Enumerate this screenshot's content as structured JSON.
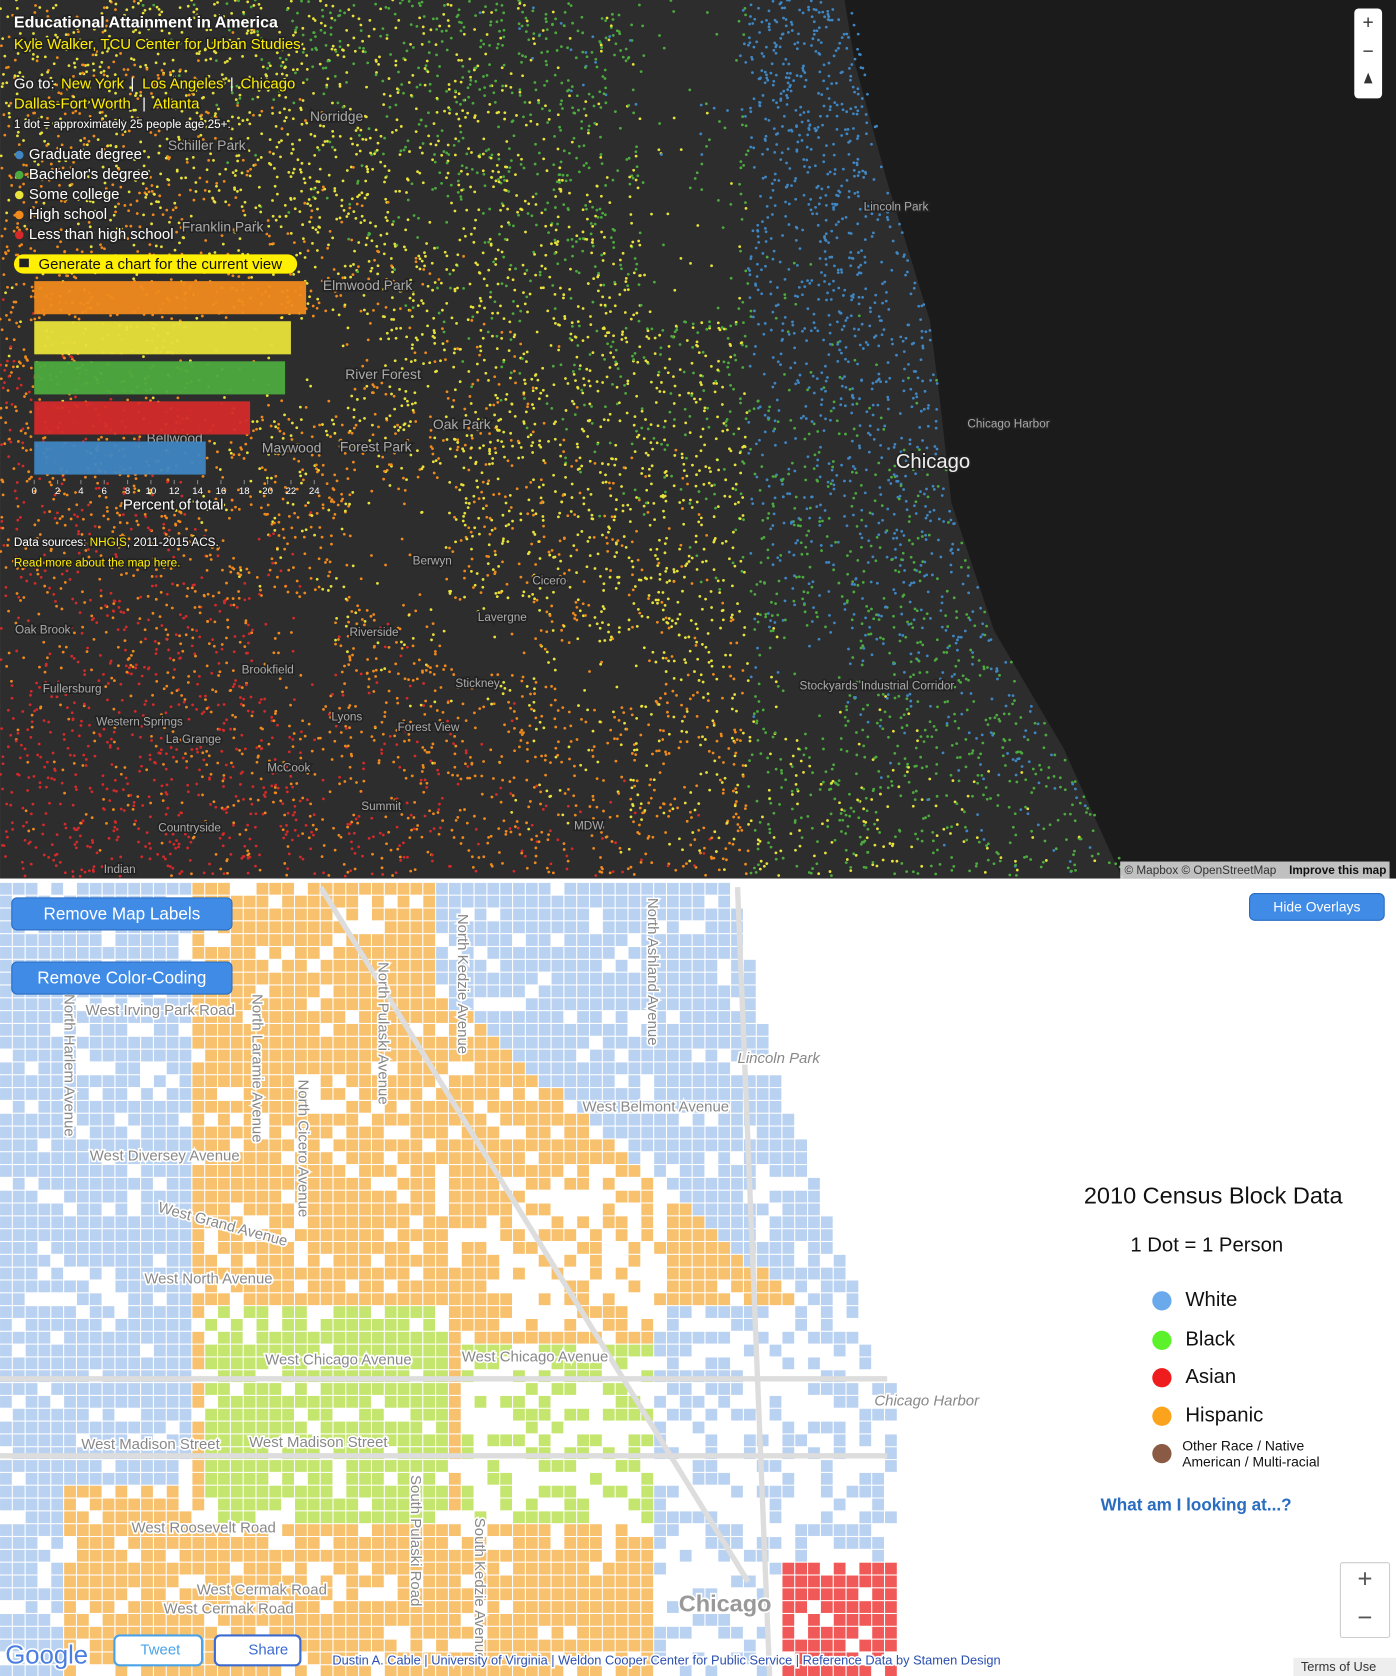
{
  "top_map": {
    "title": "Educational Attainment in America",
    "author": "Kyle Walker, TCU Center for Urban Studies",
    "goto": "Go to:",
    "cities": [
      "New York",
      "Los Angeles",
      "Chicago",
      "Dallas-Fort Worth",
      "Atlanta"
    ],
    "separator": "|",
    "note": "1 dot = approximately 25 people age 25+.",
    "legend": [
      {
        "label": "Graduate degree",
        "color": "#3f86c2"
      },
      {
        "label": "Bachelor's degree",
        "color": "#4caa3e"
      },
      {
        "label": "Some college",
        "color": "#e8e23a"
      },
      {
        "label": "High school",
        "color": "#f08a1c"
      },
      {
        "label": "Less than high school",
        "color": "#d42a2a"
      }
    ],
    "chart_button": "Generate a chart for the current view",
    "sources_prefix": "Data sources: ",
    "sources_link": "NHGIS",
    "sources_suffix": ", 2011-2015 ACS.",
    "read_more": "Read more about the map here.",
    "attribution": "© Mapbox © OpenStreetMap",
    "improve": "Improve this map",
    "zoom_in": "+",
    "zoom_out": "−",
    "places": [
      "Norridge",
      "Schiller Park",
      "Franklin Park",
      "Elmwood Park",
      "River Forest",
      "Oak Park",
      "Forest Park",
      "Maywood",
      "Bellwood",
      "Lincoln Park",
      "Chicago Harbor",
      "Chicago",
      "Berwyn",
      "Cicero",
      "Lavergne",
      "Riverside",
      "Brookfield",
      "Stickney",
      "Stockyards Industrial Corridor",
      "Oak Brook",
      "Fullersburg",
      "Western Springs",
      "La Grange",
      "Lyons",
      "Forest View",
      "McCook",
      "Summit",
      "MDW",
      "Countryside",
      "Indian"
    ]
  },
  "chart_data": {
    "type": "bar",
    "orientation": "horizontal",
    "values": [
      23.3,
      22.0,
      21.5,
      18.5,
      14.7
    ],
    "colors": [
      "#f08a1c",
      "#e8e23a",
      "#4caa3e",
      "#d42a2a",
      "#3f86c2"
    ],
    "xlim": [
      0,
      24
    ],
    "xticks": [
      0,
      2,
      4,
      6,
      8,
      10,
      12,
      14,
      16,
      18,
      20,
      22,
      24
    ],
    "xlabel": "Percent of total"
  },
  "bottom_map": {
    "remove_labels": "Remove Map Labels",
    "remove_colors": "Remove Color-Coding",
    "hide_overlays": "Hide Overlays",
    "legend_title": "2010 Census Block Data",
    "legend_subtitle": "1 Dot = 1 Person",
    "legend": [
      {
        "label": "White",
        "color": "#6aa9ec"
      },
      {
        "label": "Black",
        "color": "#5bf22b"
      },
      {
        "label": "Asian",
        "color": "#ee1c1c"
      },
      {
        "label": "Hispanic",
        "color": "#fba31c"
      },
      {
        "label": "Other Race / Native American / Multi-racial",
        "color": "#8b5a44"
      }
    ],
    "link": "What am I looking at...?",
    "zoom_in": "+",
    "zoom_out": "−",
    "google": "Google",
    "tweet": "Tweet",
    "share": "Share",
    "credits": "Dustin A. Cable | University of Virginia | Weldon Cooper Center for Public Service | Reference Data by Stamen Design",
    "terms": "Terms of Use",
    "streets": [
      "West Irving Park Road",
      "West Diversey Avenue",
      "West Grand Avenue",
      "West North Avenue",
      "West Chicago Avenue",
      "West Chicago Avenue",
      "West Madison Street",
      "West Madison Street",
      "West Roosevelt Road",
      "West Cermak Road",
      "West Cermak Road",
      "West Belmont Avenue",
      "Lincoln Park",
      "Chicago Harbor",
      "Chicago",
      "North Harlem Avenue",
      "North Laramie Avenue",
      "North Cicero Avenue",
      "North Pulaski Avenue",
      "North Kedzie Avenue",
      "North Ashland Avenue",
      "South Pulaski Road",
      "South Kedzie Avenue"
    ]
  }
}
